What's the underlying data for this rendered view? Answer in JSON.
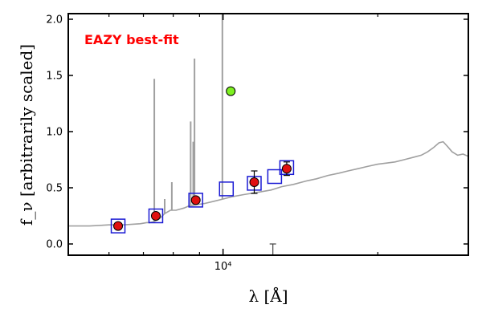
{
  "chart_data": {
    "type": "scatter",
    "xscale": "log",
    "xlim": [
      5000,
      30000
    ],
    "ylim": [
      -0.1,
      2.05
    ],
    "xlabel": "λ [Å]",
    "ylabel": "f_ν [arbitrarily scaled]",
    "yticks": [
      0.0,
      0.5,
      1.0,
      1.5,
      2.0
    ],
    "ytick_labels": [
      "0.0",
      "0.5",
      "1.0",
      "1.5",
      "2.0"
    ],
    "xtick_major": [
      10000
    ],
    "xtick_major_labels": [
      "10⁴"
    ],
    "xtick_minor": [
      6000,
      7000,
      8000,
      9000,
      20000
    ],
    "annotation": "EAZY best-fit",
    "colors": {
      "sed": "#a0a0a0",
      "model_box": "#1a1ad4",
      "observed": "#e01010",
      "outlier": "#7df020",
      "annotation": "#ff0000"
    },
    "sed_curve": {
      "x": [
        5000,
        5500,
        6000,
        6400,
        6900,
        7100,
        7200,
        7350,
        7500,
        7700,
        7900,
        8100,
        8400,
        8600,
        8900,
        9200,
        9600,
        10000,
        10400,
        11000,
        11700,
        12400,
        13000,
        13700,
        14500,
        15200,
        16000,
        16800,
        17500,
        18300,
        19100,
        20000,
        20800,
        21600,
        22500,
        23400,
        24300,
        25000,
        25700,
        26300,
        26800,
        27300,
        27900,
        28600,
        29300,
        30000
      ],
      "y": [
        0.16,
        0.16,
        0.17,
        0.17,
        0.18,
        0.19,
        0.19,
        0.2,
        0.22,
        0.27,
        0.3,
        0.3,
        0.32,
        0.34,
        0.35,
        0.36,
        0.38,
        0.4,
        0.42,
        0.44,
        0.46,
        0.48,
        0.51,
        0.53,
        0.56,
        0.58,
        0.61,
        0.63,
        0.65,
        0.67,
        0.69,
        0.71,
        0.72,
        0.73,
        0.75,
        0.77,
        0.79,
        0.82,
        0.86,
        0.9,
        0.91,
        0.87,
        0.82,
        0.79,
        0.8,
        0.78
      ]
    },
    "emission_lines": [
      {
        "x": 7350,
        "y": 1.47
      },
      {
        "x": 7700,
        "y": 0.4
      },
      {
        "x": 7950,
        "y": 0.55
      },
      {
        "x": 8650,
        "y": 1.09
      },
      {
        "x": 8750,
        "y": 0.91
      },
      {
        "x": 8800,
        "y": 1.65
      },
      {
        "x": 9970,
        "y": 2.05
      }
    ],
    "model_boxes": [
      {
        "x": 6250,
        "y": 0.16
      },
      {
        "x": 7400,
        "y": 0.25
      },
      {
        "x": 8850,
        "y": 0.39
      },
      {
        "x": 10150,
        "y": 0.49
      },
      {
        "x": 11500,
        "y": 0.54
      },
      {
        "x": 12600,
        "y": 0.6
      },
      {
        "x": 13300,
        "y": 0.68
      }
    ],
    "observed_points": [
      {
        "x": 6250,
        "y": 0.16,
        "err": 0
      },
      {
        "x": 7400,
        "y": 0.25,
        "err": 0
      },
      {
        "x": 8850,
        "y": 0.39,
        "err": 0
      },
      {
        "x": 11500,
        "y": 0.55,
        "err": 0.1
      },
      {
        "x": 13300,
        "y": 0.67,
        "err": 0.06
      }
    ],
    "outlier_points": [
      {
        "x": 10350,
        "y": 1.36
      }
    ],
    "upper_limits": [
      {
        "x": 12500,
        "y_low": -0.1,
        "y_high": 0.0
      }
    ]
  }
}
